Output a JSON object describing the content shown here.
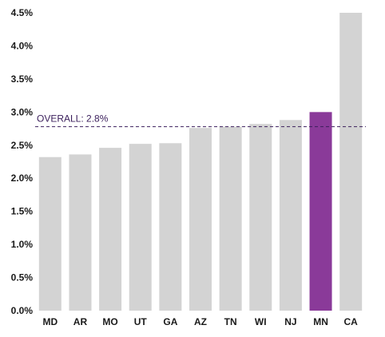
{
  "chart_data": {
    "type": "bar",
    "categories": [
      "MD",
      "AR",
      "MO",
      "UT",
      "GA",
      "AZ",
      "TN",
      "WI",
      "NJ",
      "MN",
      "CA"
    ],
    "values": [
      2.32,
      2.36,
      2.46,
      2.52,
      2.53,
      2.76,
      2.78,
      2.82,
      2.88,
      3.0,
      4.5
    ],
    "highlight_category": "MN",
    "ylim": [
      0,
      4.5
    ],
    "yticks": [
      0,
      0.5,
      1.0,
      1.5,
      2.0,
      2.5,
      3.0,
      3.5,
      4.0,
      4.5
    ],
    "ytick_labels": [
      "0.0%",
      "0.5%",
      "1.0%",
      "1.5%",
      "2.0%",
      "2.5%",
      "3.0%",
      "3.5%",
      "4.0%",
      "4.5%"
    ],
    "reference_line": {
      "value": 2.78,
      "label": "OVERALL: 2.8%"
    },
    "colors": {
      "bar": "#d3d3d3",
      "highlight": "#8a3a99",
      "reference": "#3b1f5c",
      "text": "#1a1a1a"
    },
    "title": "",
    "xlabel": "",
    "ylabel": "",
    "grid": false
  }
}
